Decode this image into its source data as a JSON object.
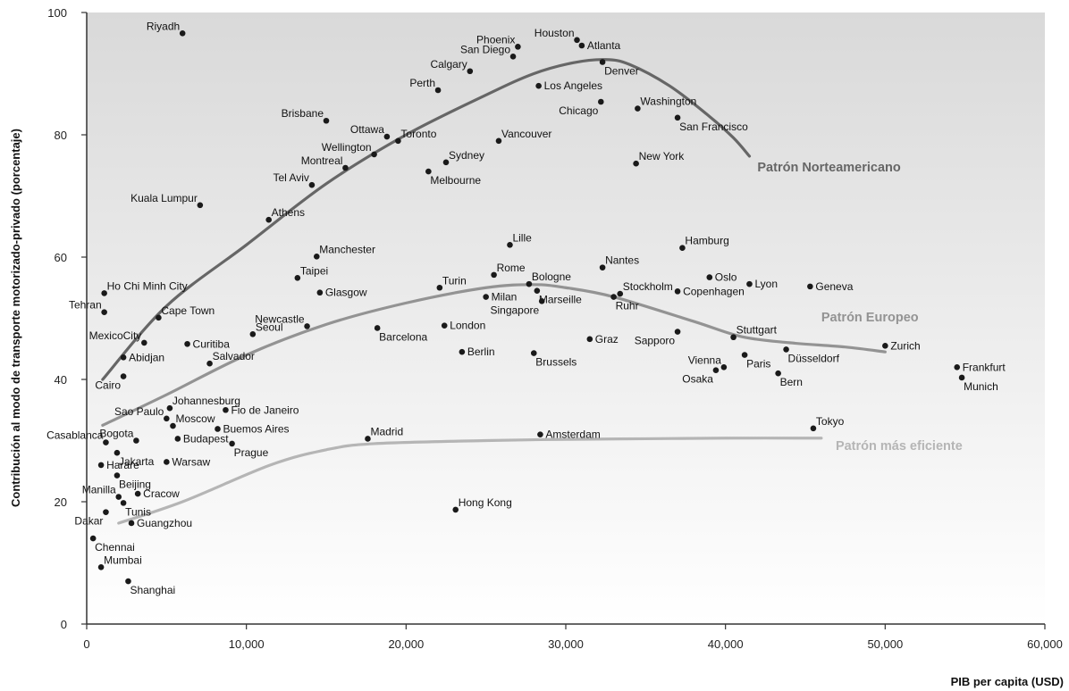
{
  "chart_data": {
    "type": "scatter",
    "title": "",
    "xlabel": "PIB per capita (USD)",
    "ylabel": "Contribución al modo de transporte motorizado-privado (porcentaje)",
    "xlim": [
      0,
      60000
    ],
    "ylim": [
      0,
      100
    ],
    "xticks": [
      0,
      10000,
      20000,
      30000,
      40000,
      50000,
      60000
    ],
    "xtick_labels": [
      "0",
      "10,000",
      "20,000",
      "30,000",
      "40,000",
      "50,000",
      "60,000"
    ],
    "yticks": [
      0,
      20,
      40,
      60,
      80,
      100
    ],
    "ytick_labels": [
      "0",
      "20",
      "40",
      "60",
      "80",
      "100"
    ],
    "grid": false,
    "background": "gradient light gray",
    "points": [
      {
        "label": "Riyadh",
        "x": 6000,
        "y": 96.6,
        "pos": "tl"
      },
      {
        "label": "Houston",
        "x": 30700,
        "y": 95.5,
        "pos": "tl"
      },
      {
        "label": "Atlanta",
        "x": 31000,
        "y": 94.6,
        "pos": "r"
      },
      {
        "label": "Phoenix",
        "x": 27000,
        "y": 94.4,
        "pos": "tl"
      },
      {
        "label": "San Diego",
        "x": 26700,
        "y": 92.8,
        "pos": "tl"
      },
      {
        "label": "Calgary",
        "x": 24000,
        "y": 90.4,
        "pos": "tl"
      },
      {
        "label": "Denver",
        "x": 32300,
        "y": 91.9,
        "pos": "br"
      },
      {
        "label": "Perth",
        "x": 22000,
        "y": 87.3,
        "pos": "tl"
      },
      {
        "label": "Los Angeles",
        "x": 28300,
        "y": 88.0,
        "pos": "r"
      },
      {
        "label": "Washington",
        "x": 34500,
        "y": 84.3,
        "pos": "tr"
      },
      {
        "label": "Chicago",
        "x": 32200,
        "y": 85.4,
        "pos": "bl"
      },
      {
        "label": "San Francisco",
        "x": 37000,
        "y": 82.8,
        "pos": "br"
      },
      {
        "label": "Brisbane",
        "x": 15000,
        "y": 82.3,
        "pos": "tl"
      },
      {
        "label": "Ottawa",
        "x": 18800,
        "y": 79.7,
        "pos": "tl"
      },
      {
        "label": "Toronto",
        "x": 19500,
        "y": 79.0,
        "pos": "tr"
      },
      {
        "label": "Vancouver",
        "x": 25800,
        "y": 79.0,
        "pos": "tr"
      },
      {
        "label": "Wellington",
        "x": 18000,
        "y": 76.8,
        "pos": "tl"
      },
      {
        "label": "Sydney",
        "x": 22500,
        "y": 75.5,
        "pos": "tr"
      },
      {
        "label": "New York",
        "x": 34400,
        "y": 75.3,
        "pos": "tr"
      },
      {
        "label": "Montreal",
        "x": 16200,
        "y": 74.6,
        "pos": "tl"
      },
      {
        "label": "Melbourne",
        "x": 21400,
        "y": 74.0,
        "pos": "br"
      },
      {
        "label": "Tel Aviv",
        "x": 14100,
        "y": 71.8,
        "pos": "tl"
      },
      {
        "label": "Kuala Lumpur",
        "x": 7100,
        "y": 68.5,
        "pos": "tl"
      },
      {
        "label": "Athens",
        "x": 11400,
        "y": 66.1,
        "pos": "tr"
      },
      {
        "label": "Lille",
        "x": 26500,
        "y": 62.0,
        "pos": "tr"
      },
      {
        "label": "Hamburg",
        "x": 37300,
        "y": 61.5,
        "pos": "tr"
      },
      {
        "label": "Manchester",
        "x": 14400,
        "y": 60.1,
        "pos": "tr"
      },
      {
        "label": "Nantes",
        "x": 32300,
        "y": 58.3,
        "pos": "tr"
      },
      {
        "label": "Rome",
        "x": 25500,
        "y": 57.1,
        "pos": "tr"
      },
      {
        "label": "Oslo",
        "x": 39000,
        "y": 56.7,
        "pos": "r"
      },
      {
        "label": "Taipei",
        "x": 13200,
        "y": 56.6,
        "pos": "tr"
      },
      {
        "label": "Bologne",
        "x": 27700,
        "y": 55.6,
        "pos": "tr"
      },
      {
        "label": "Lyon",
        "x": 41500,
        "y": 55.6,
        "pos": "r"
      },
      {
        "label": "Geneva",
        "x": 45300,
        "y": 55.2,
        "pos": "r"
      },
      {
        "label": "Turin",
        "x": 22100,
        "y": 55.0,
        "pos": "tr"
      },
      {
        "label": "Ho Chi Minh City",
        "x": 1100,
        "y": 54.1,
        "pos": "tr"
      },
      {
        "label": "Glasgow",
        "x": 14600,
        "y": 54.2,
        "pos": "r"
      },
      {
        "label": "Stockholm",
        "x": 33400,
        "y": 54.0,
        "pos": "tr"
      },
      {
        "label": "Copenhagen",
        "x": 37000,
        "y": 54.4,
        "pos": "r"
      },
      {
        "label": "Milan",
        "x": 25000,
        "y": 53.5,
        "pos": "r"
      },
      {
        "label": "Marseille",
        "x": 28200,
        "y": 54.5,
        "pos": "br"
      },
      {
        "label": "Singapore",
        "x": 28500,
        "y": 52.8,
        "pos": "bl"
      },
      {
        "label": "Ruhr",
        "x": 33000,
        "y": 53.5,
        "pos": "br"
      },
      {
        "label": "Tehran",
        "x": 1100,
        "y": 51.0,
        "pos": "tl"
      },
      {
        "label": "Cape Town",
        "x": 4500,
        "y": 50.1,
        "pos": "tr"
      },
      {
        "label": "Newcastle",
        "x": 13800,
        "y": 48.7,
        "pos": "tl"
      },
      {
        "label": "Seoul",
        "x": 10400,
        "y": 47.4,
        "pos": "tr"
      },
      {
        "label": "London",
        "x": 22400,
        "y": 48.8,
        "pos": "r"
      },
      {
        "label": "Barcelona",
        "x": 18200,
        "y": 48.4,
        "pos": "br"
      },
      {
        "label": "Stuttgart",
        "x": 40500,
        "y": 46.9,
        "pos": "tr"
      },
      {
        "label": "Sapporo",
        "x": 37000,
        "y": 47.8,
        "pos": "bl"
      },
      {
        "label": "MexicoCity",
        "x": 3600,
        "y": 46.0,
        "pos": "tl"
      },
      {
        "label": "Curitiba",
        "x": 6300,
        "y": 45.8,
        "pos": "r"
      },
      {
        "label": "Graz",
        "x": 31500,
        "y": 46.6,
        "pos": "r"
      },
      {
        "label": "Zurich",
        "x": 50000,
        "y": 45.5,
        "pos": "r"
      },
      {
        "label": "Berlin",
        "x": 23500,
        "y": 44.5,
        "pos": "r"
      },
      {
        "label": "Brussels",
        "x": 28000,
        "y": 44.3,
        "pos": "br"
      },
      {
        "label": "Salvador",
        "x": 7700,
        "y": 42.6,
        "pos": "tr"
      },
      {
        "label": "Abidjan",
        "x": 2300,
        "y": 43.6,
        "pos": "r"
      },
      {
        "label": "Paris",
        "x": 41200,
        "y": 44.0,
        "pos": "br"
      },
      {
        "label": "Düsseldorf",
        "x": 43800,
        "y": 44.9,
        "pos": "br"
      },
      {
        "label": "Vienna",
        "x": 39900,
        "y": 42.0,
        "pos": "tl"
      },
      {
        "label": "Osaka",
        "x": 39400,
        "y": 41.5,
        "pos": "bl"
      },
      {
        "label": "Bern",
        "x": 43300,
        "y": 41.0,
        "pos": "br"
      },
      {
        "label": "Frankfurt",
        "x": 54500,
        "y": 42.0,
        "pos": "r"
      },
      {
        "label": "Munich",
        "x": 54800,
        "y": 40.3,
        "pos": "br"
      },
      {
        "label": "Cairo",
        "x": 2300,
        "y": 40.5,
        "pos": "bl"
      },
      {
        "label": "Johannesburg",
        "x": 5200,
        "y": 35.3,
        "pos": "tr"
      },
      {
        "label": "Fio de Janeiro",
        "x": 8700,
        "y": 35.0,
        "pos": "r"
      },
      {
        "label": "Sao Paulo",
        "x": 5000,
        "y": 33.6,
        "pos": "tl"
      },
      {
        "label": "Moscow",
        "x": 5400,
        "y": 32.4,
        "pos": "tr"
      },
      {
        "label": "Bogota",
        "x": 3100,
        "y": 30.0,
        "pos": "tl"
      },
      {
        "label": "Buemos Aires",
        "x": 8200,
        "y": 31.9,
        "pos": "r"
      },
      {
        "label": "Tokyo",
        "x": 45500,
        "y": 32.0,
        "pos": "tr"
      },
      {
        "label": "Casablanca",
        "x": 1200,
        "y": 29.7,
        "pos": "tl"
      },
      {
        "label": "Budapest",
        "x": 5700,
        "y": 30.3,
        "pos": "r"
      },
      {
        "label": "Amsterdam",
        "x": 28400,
        "y": 31.0,
        "pos": "r"
      },
      {
        "label": "Madrid",
        "x": 17600,
        "y": 30.3,
        "pos": "tr"
      },
      {
        "label": "Prague",
        "x": 9100,
        "y": 29.5,
        "pos": "br"
      },
      {
        "label": "Jakarta",
        "x": 1900,
        "y": 28.0,
        "pos": "br"
      },
      {
        "label": "Warsaw",
        "x": 5000,
        "y": 26.5,
        "pos": "r"
      },
      {
        "label": "Harare",
        "x": 900,
        "y": 26.0,
        "pos": "r"
      },
      {
        "label": "Beijing",
        "x": 1900,
        "y": 24.3,
        "pos": "br"
      },
      {
        "label": "Manilla",
        "x": 2000,
        "y": 20.8,
        "pos": "tl"
      },
      {
        "label": "Cracow",
        "x": 3200,
        "y": 21.3,
        "pos": "r"
      },
      {
        "label": "Tunis",
        "x": 2300,
        "y": 19.8,
        "pos": "br"
      },
      {
        "label": "Hong Kong",
        "x": 23100,
        "y": 18.7,
        "pos": "tr"
      },
      {
        "label": "Dakar",
        "x": 1200,
        "y": 18.3,
        "pos": "bl"
      },
      {
        "label": "Guangzhou",
        "x": 2800,
        "y": 16.5,
        "pos": "r"
      },
      {
        "label": "Chennai",
        "x": 400,
        "y": 14.0,
        "pos": "br"
      },
      {
        "label": "Mumbai",
        "x": 900,
        "y": 9.3,
        "pos": "tr"
      },
      {
        "label": "Shanghai",
        "x": 2600,
        "y": 7.0,
        "pos": "br"
      }
    ],
    "curves": [
      {
        "name": "Patrón Norteamericano",
        "color": "#666666",
        "label_x": 42000,
        "label_y": 74.0,
        "x": [
          1000,
          5000,
          10000,
          15000,
          20000,
          25000,
          28000,
          30500,
          32500,
          34000,
          36500,
          39000,
          40500,
          41500
        ],
        "y": [
          40.0,
          52.0,
          62.0,
          72.0,
          80.0,
          86.5,
          90.0,
          91.8,
          92.3,
          91.5,
          88.0,
          83.0,
          79.5,
          76.5
        ]
      },
      {
        "name": "Patrón Europeo",
        "color": "#939393",
        "label_x": 46000,
        "label_y": 49.5,
        "x": [
          1000,
          5000,
          10000,
          15000,
          20000,
          25000,
          28000,
          30000,
          33000,
          38000,
          41000,
          44000,
          47500,
          50000
        ],
        "y": [
          32.5,
          37.5,
          44.0,
          49.0,
          52.5,
          55.0,
          55.5,
          55.0,
          53.5,
          49.5,
          47.0,
          46.0,
          45.3,
          44.5
        ],
        "y_print": []
      },
      {
        "name": "Patrón más eficiente",
        "color": "#b5b5b5",
        "label_x": 46900,
        "label_y": 28.5,
        "x": [
          2000,
          6000,
          11500,
          15000,
          18000,
          25000,
          30000,
          35000,
          40000,
          46000
        ],
        "y": [
          16.5,
          20.0,
          26.0,
          28.5,
          29.5,
          30.0,
          30.2,
          30.3,
          30.4,
          30.4
        ]
      }
    ]
  }
}
